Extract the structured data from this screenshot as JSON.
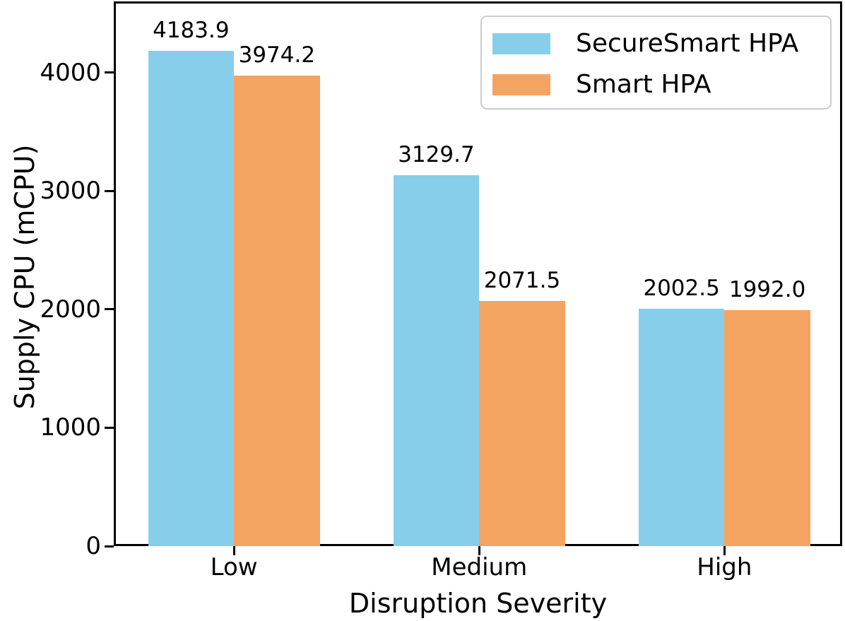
{
  "chart_data": {
    "type": "bar",
    "title": "",
    "xlabel": "Disruption Severity",
    "ylabel": "Supply CPU (mCPU)",
    "categories": [
      "Low",
      "Medium",
      "High"
    ],
    "series": [
      {
        "name": "SecureSmart HPA",
        "color": "#87CEEB",
        "values": [
          4183.9,
          3129.7,
          2002.5
        ],
        "value_labels": [
          "4183.9",
          "3129.7",
          "2002.5"
        ]
      },
      {
        "name": "Smart HPA",
        "color": "#F4A460",
        "values": [
          3974.2,
          2071.5,
          1992.0
        ],
        "value_labels": [
          "3974.2",
          "2071.5",
          "1992.0"
        ]
      }
    ],
    "yticks": [
      0,
      1000,
      2000,
      3000,
      4000
    ],
    "ytick_labels": [
      "0",
      "1000",
      "2000",
      "3000",
      "4000"
    ],
    "ylim": [
      0,
      4600
    ],
    "bar_width_units": 0.35,
    "grid": false,
    "legend_position": "upper right",
    "axis_color": "#000000",
    "background_color": "#ffffff"
  }
}
